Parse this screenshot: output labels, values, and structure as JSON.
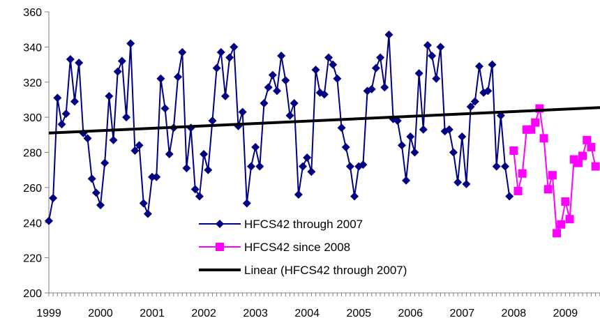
{
  "chart_data": {
    "type": "line",
    "title": "",
    "xlabel": "",
    "ylabel": "",
    "ylim": [
      200,
      360
    ],
    "yticks": [
      200,
      220,
      240,
      260,
      280,
      300,
      320,
      340,
      360
    ],
    "xlim": [
      1999.0,
      2009.67
    ],
    "xticks": [
      "1999",
      "2000",
      "2001",
      "2002",
      "2003",
      "2004",
      "2005",
      "2006",
      "2007",
      "2008",
      "2009"
    ],
    "grid": false,
    "legend_position": "bottom-center",
    "series": [
      {
        "name": "HFCS42 through 2007",
        "color": "#000080",
        "marker": "diamond",
        "x_start": "1999-01",
        "values": [
          241,
          254,
          311,
          296,
          302,
          333,
          309,
          331,
          291,
          288,
          265,
          257,
          250,
          274,
          312,
          287,
          326,
          332,
          300,
          342,
          281,
          284,
          251,
          245,
          266,
          266,
          322,
          305,
          279,
          294,
          323,
          337,
          271,
          294,
          259,
          255,
          279,
          270,
          298,
          328,
          337,
          312,
          334,
          340,
          295,
          303,
          251,
          272,
          283,
          272,
          308,
          317,
          324,
          315,
          335,
          321,
          301,
          308,
          256,
          272,
          277,
          269,
          327,
          314,
          313,
          334,
          330,
          322,
          294,
          283,
          272,
          255,
          272,
          273,
          315,
          316,
          328,
          334,
          317,
          347,
          299,
          298,
          284,
          264,
          289,
          280,
          325,
          293,
          341,
          335,
          322,
          340,
          292,
          293,
          280,
          263,
          289,
          262,
          306,
          309,
          329,
          314,
          315,
          330,
          272,
          301,
          272,
          255
        ]
      },
      {
        "name": "HFCS42 since 2008",
        "color": "#FF00FF",
        "marker": "square",
        "x_start": "2008-01",
        "values": [
          281,
          258,
          268,
          293,
          293,
          297,
          305,
          288,
          259,
          267,
          234,
          239,
          252,
          242,
          276,
          274,
          278,
          287,
          283,
          272
        ]
      },
      {
        "name": "Linear (HFCS42 through 2007)",
        "color": "#000000",
        "marker": "none",
        "trend_endpoints": [
          [
            1999.0,
            291
          ],
          [
            2009.67,
            305.5
          ]
        ]
      }
    ]
  }
}
